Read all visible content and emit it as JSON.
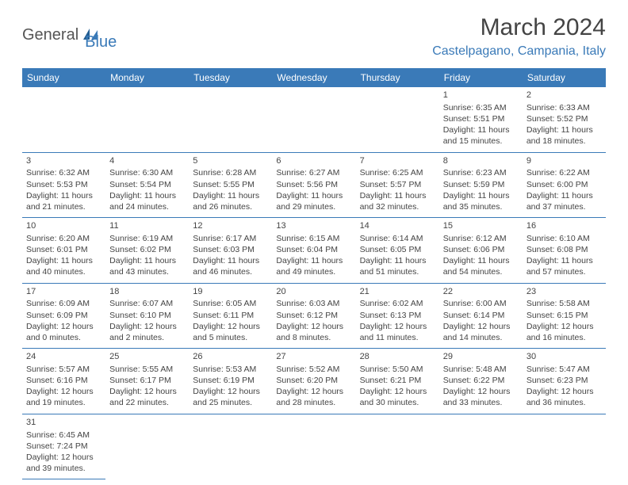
{
  "logo": {
    "part1": "General",
    "part2": "Blue"
  },
  "title": "March 2024",
  "location": "Castelpagano, Campania, Italy",
  "colors": {
    "header_bg": "#3a7ab8",
    "header_fg": "#ffffff",
    "text": "#444444",
    "accent": "#3a7ab8",
    "border": "#3a7ab8"
  },
  "weekdays": [
    "Sunday",
    "Monday",
    "Tuesday",
    "Wednesday",
    "Thursday",
    "Friday",
    "Saturday"
  ],
  "cells": [
    [
      null,
      null,
      null,
      null,
      null,
      {
        "d": "1",
        "sr": "Sunrise: 6:35 AM",
        "ss": "Sunset: 5:51 PM",
        "dl1": "Daylight: 11 hours",
        "dl2": "and 15 minutes."
      },
      {
        "d": "2",
        "sr": "Sunrise: 6:33 AM",
        "ss": "Sunset: 5:52 PM",
        "dl1": "Daylight: 11 hours",
        "dl2": "and 18 minutes."
      }
    ],
    [
      {
        "d": "3",
        "sr": "Sunrise: 6:32 AM",
        "ss": "Sunset: 5:53 PM",
        "dl1": "Daylight: 11 hours",
        "dl2": "and 21 minutes."
      },
      {
        "d": "4",
        "sr": "Sunrise: 6:30 AM",
        "ss": "Sunset: 5:54 PM",
        "dl1": "Daylight: 11 hours",
        "dl2": "and 24 minutes."
      },
      {
        "d": "5",
        "sr": "Sunrise: 6:28 AM",
        "ss": "Sunset: 5:55 PM",
        "dl1": "Daylight: 11 hours",
        "dl2": "and 26 minutes."
      },
      {
        "d": "6",
        "sr": "Sunrise: 6:27 AM",
        "ss": "Sunset: 5:56 PM",
        "dl1": "Daylight: 11 hours",
        "dl2": "and 29 minutes."
      },
      {
        "d": "7",
        "sr": "Sunrise: 6:25 AM",
        "ss": "Sunset: 5:57 PM",
        "dl1": "Daylight: 11 hours",
        "dl2": "and 32 minutes."
      },
      {
        "d": "8",
        "sr": "Sunrise: 6:23 AM",
        "ss": "Sunset: 5:59 PM",
        "dl1": "Daylight: 11 hours",
        "dl2": "and 35 minutes."
      },
      {
        "d": "9",
        "sr": "Sunrise: 6:22 AM",
        "ss": "Sunset: 6:00 PM",
        "dl1": "Daylight: 11 hours",
        "dl2": "and 37 minutes."
      }
    ],
    [
      {
        "d": "10",
        "sr": "Sunrise: 6:20 AM",
        "ss": "Sunset: 6:01 PM",
        "dl1": "Daylight: 11 hours",
        "dl2": "and 40 minutes."
      },
      {
        "d": "11",
        "sr": "Sunrise: 6:19 AM",
        "ss": "Sunset: 6:02 PM",
        "dl1": "Daylight: 11 hours",
        "dl2": "and 43 minutes."
      },
      {
        "d": "12",
        "sr": "Sunrise: 6:17 AM",
        "ss": "Sunset: 6:03 PM",
        "dl1": "Daylight: 11 hours",
        "dl2": "and 46 minutes."
      },
      {
        "d": "13",
        "sr": "Sunrise: 6:15 AM",
        "ss": "Sunset: 6:04 PM",
        "dl1": "Daylight: 11 hours",
        "dl2": "and 49 minutes."
      },
      {
        "d": "14",
        "sr": "Sunrise: 6:14 AM",
        "ss": "Sunset: 6:05 PM",
        "dl1": "Daylight: 11 hours",
        "dl2": "and 51 minutes."
      },
      {
        "d": "15",
        "sr": "Sunrise: 6:12 AM",
        "ss": "Sunset: 6:06 PM",
        "dl1": "Daylight: 11 hours",
        "dl2": "and 54 minutes."
      },
      {
        "d": "16",
        "sr": "Sunrise: 6:10 AM",
        "ss": "Sunset: 6:08 PM",
        "dl1": "Daylight: 11 hours",
        "dl2": "and 57 minutes."
      }
    ],
    [
      {
        "d": "17",
        "sr": "Sunrise: 6:09 AM",
        "ss": "Sunset: 6:09 PM",
        "dl1": "Daylight: 12 hours",
        "dl2": "and 0 minutes."
      },
      {
        "d": "18",
        "sr": "Sunrise: 6:07 AM",
        "ss": "Sunset: 6:10 PM",
        "dl1": "Daylight: 12 hours",
        "dl2": "and 2 minutes."
      },
      {
        "d": "19",
        "sr": "Sunrise: 6:05 AM",
        "ss": "Sunset: 6:11 PM",
        "dl1": "Daylight: 12 hours",
        "dl2": "and 5 minutes."
      },
      {
        "d": "20",
        "sr": "Sunrise: 6:03 AM",
        "ss": "Sunset: 6:12 PM",
        "dl1": "Daylight: 12 hours",
        "dl2": "and 8 minutes."
      },
      {
        "d": "21",
        "sr": "Sunrise: 6:02 AM",
        "ss": "Sunset: 6:13 PM",
        "dl1": "Daylight: 12 hours",
        "dl2": "and 11 minutes."
      },
      {
        "d": "22",
        "sr": "Sunrise: 6:00 AM",
        "ss": "Sunset: 6:14 PM",
        "dl1": "Daylight: 12 hours",
        "dl2": "and 14 minutes."
      },
      {
        "d": "23",
        "sr": "Sunrise: 5:58 AM",
        "ss": "Sunset: 6:15 PM",
        "dl1": "Daylight: 12 hours",
        "dl2": "and 16 minutes."
      }
    ],
    [
      {
        "d": "24",
        "sr": "Sunrise: 5:57 AM",
        "ss": "Sunset: 6:16 PM",
        "dl1": "Daylight: 12 hours",
        "dl2": "and 19 minutes."
      },
      {
        "d": "25",
        "sr": "Sunrise: 5:55 AM",
        "ss": "Sunset: 6:17 PM",
        "dl1": "Daylight: 12 hours",
        "dl2": "and 22 minutes."
      },
      {
        "d": "26",
        "sr": "Sunrise: 5:53 AM",
        "ss": "Sunset: 6:19 PM",
        "dl1": "Daylight: 12 hours",
        "dl2": "and 25 minutes."
      },
      {
        "d": "27",
        "sr": "Sunrise: 5:52 AM",
        "ss": "Sunset: 6:20 PM",
        "dl1": "Daylight: 12 hours",
        "dl2": "and 28 minutes."
      },
      {
        "d": "28",
        "sr": "Sunrise: 5:50 AM",
        "ss": "Sunset: 6:21 PM",
        "dl1": "Daylight: 12 hours",
        "dl2": "and 30 minutes."
      },
      {
        "d": "29",
        "sr": "Sunrise: 5:48 AM",
        "ss": "Sunset: 6:22 PM",
        "dl1": "Daylight: 12 hours",
        "dl2": "and 33 minutes."
      },
      {
        "d": "30",
        "sr": "Sunrise: 5:47 AM",
        "ss": "Sunset: 6:23 PM",
        "dl1": "Daylight: 12 hours",
        "dl2": "and 36 minutes."
      }
    ],
    [
      {
        "d": "31",
        "sr": "Sunrise: 6:45 AM",
        "ss": "Sunset: 7:24 PM",
        "dl1": "Daylight: 12 hours",
        "dl2": "and 39 minutes."
      },
      null,
      null,
      null,
      null,
      null,
      null
    ]
  ]
}
